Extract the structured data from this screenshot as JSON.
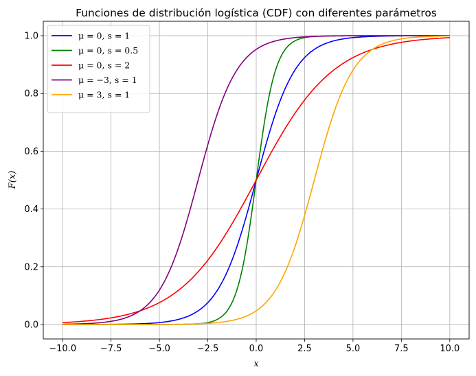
{
  "chart_data": {
    "type": "line",
    "title": "Funciones de distribución logística (CDF) con diferentes parámetros",
    "xlabel": "x",
    "ylabel": "F(x)",
    "xlim": [
      -11.0,
      11.0
    ],
    "ylim": [
      -0.05,
      1.05
    ],
    "xticks": [
      -10.0,
      -7.5,
      -5.0,
      -2.5,
      0.0,
      2.5,
      5.0,
      7.5,
      10.0
    ],
    "xtick_labels": [
      "−10.0",
      "−7.5",
      "−5.0",
      "−2.5",
      "0.0",
      "2.5",
      "5.0",
      "7.5",
      "10.0"
    ],
    "yticks": [
      0.0,
      0.2,
      0.4,
      0.6,
      0.8,
      1.0
    ],
    "ytick_labels": [
      "0.0",
      "0.2",
      "0.4",
      "0.6",
      "0.8",
      "1.0"
    ],
    "grid": true,
    "legend_position": "top-left",
    "x_range": [
      -10,
      10
    ],
    "series": [
      {
        "name": "μ = 0,  s = 1",
        "mu": 0,
        "s": 1,
        "color": "#0000ff"
      },
      {
        "name": "μ = 0,  s = 0.5",
        "mu": 0,
        "s": 0.5,
        "color": "#008000"
      },
      {
        "name": "μ = 0,  s = 2",
        "mu": 0,
        "s": 2,
        "color": "#ff0000"
      },
      {
        "name": "μ = −3,  s = 1",
        "mu": -3,
        "s": 1,
        "color": "#800080"
      },
      {
        "name": "μ = 3,  s = 1",
        "mu": 3,
        "s": 1,
        "color": "#ffa500"
      }
    ]
  }
}
